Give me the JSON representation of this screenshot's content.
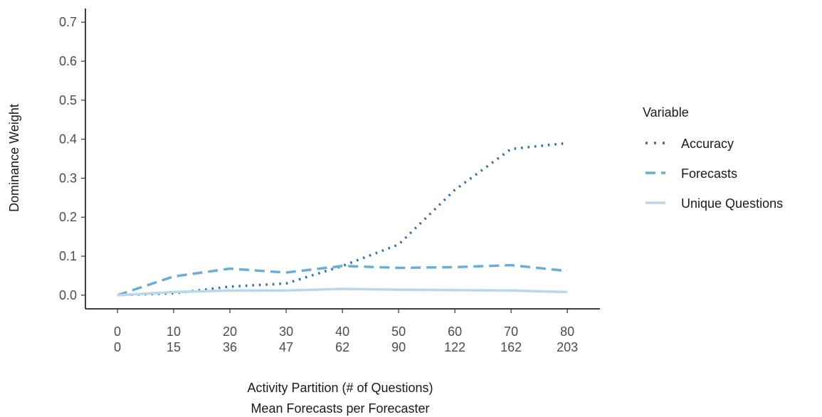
{
  "chart_data": {
    "type": "line",
    "ylabel": "Dominance Weight",
    "xlabel": [
      "Activity Partition (# of Questions)",
      "Mean Forecasts per Forecaster"
    ],
    "legend_title": "Variable",
    "x": [
      0,
      10,
      20,
      30,
      40,
      50,
      60,
      70,
      80
    ],
    "xtick_sublabels": [
      0,
      15,
      36,
      47,
      62,
      90,
      122,
      162,
      203
    ],
    "series": [
      {
        "name": "Accuracy",
        "color": "#2b6fad",
        "dash": "dotted",
        "values": [
          0,
          0.005,
          0.022,
          0.03,
          0.075,
          0.13,
          0.27,
          0.375,
          0.39
        ]
      },
      {
        "name": "Forecasts",
        "color": "#6aaed6",
        "dash": "dashed",
        "values": [
          0,
          0.048,
          0.068,
          0.058,
          0.075,
          0.07,
          0.072,
          0.077,
          0.062
        ]
      },
      {
        "name": "Unique Questions",
        "color": "#b9d7ea",
        "dash": "solid",
        "values": [
          0,
          0.008,
          0.012,
          0.012,
          0.016,
          0.014,
          0.013,
          0.012,
          0.008
        ]
      }
    ],
    "xlim": [
      -5.7,
      85.8
    ],
    "ylim": [
      -0.035,
      0.735
    ],
    "xticks": [
      0,
      10,
      20,
      30,
      40,
      50,
      60,
      70,
      80
    ],
    "yticks": [
      {
        "value": 0,
        "label": "0.0"
      },
      0.1,
      0.2,
      0.3,
      0.4,
      0.5,
      0.6,
      0.7
    ],
    "legend_position": "right"
  }
}
